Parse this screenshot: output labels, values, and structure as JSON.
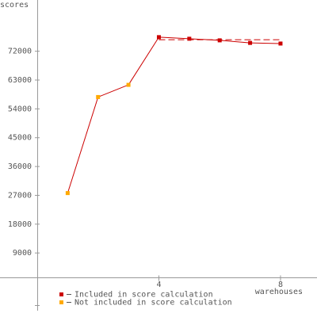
{
  "chart_data": {
    "type": "line",
    "y_label": "scores",
    "x_label": "warehouses",
    "x": [
      1,
      2,
      3,
      4,
      5,
      6,
      7,
      8
    ],
    "series": [
      {
        "name": "Included in score calculation",
        "color": "#cc0000",
        "values": [
          null,
          null,
          null,
          76400,
          75900,
          75400,
          74600,
          74400
        ]
      },
      {
        "name": "Not included in score calculation",
        "color": "#ffaa00",
        "values": [
          27700,
          57700,
          61500,
          null,
          null,
          null,
          null,
          null
        ]
      }
    ],
    "line_color": "#cc0000",
    "score_line": {
      "value": 75600,
      "x": [
        4,
        8
      ]
    },
    "xlim": [
      0,
      9.2
    ],
    "xticks": [
      4,
      8
    ],
    "ylim": [
      -11000,
      88000
    ],
    "yticks": [
      9000,
      18000,
      27000,
      36000,
      45000,
      54000,
      63000,
      72000
    ]
  }
}
